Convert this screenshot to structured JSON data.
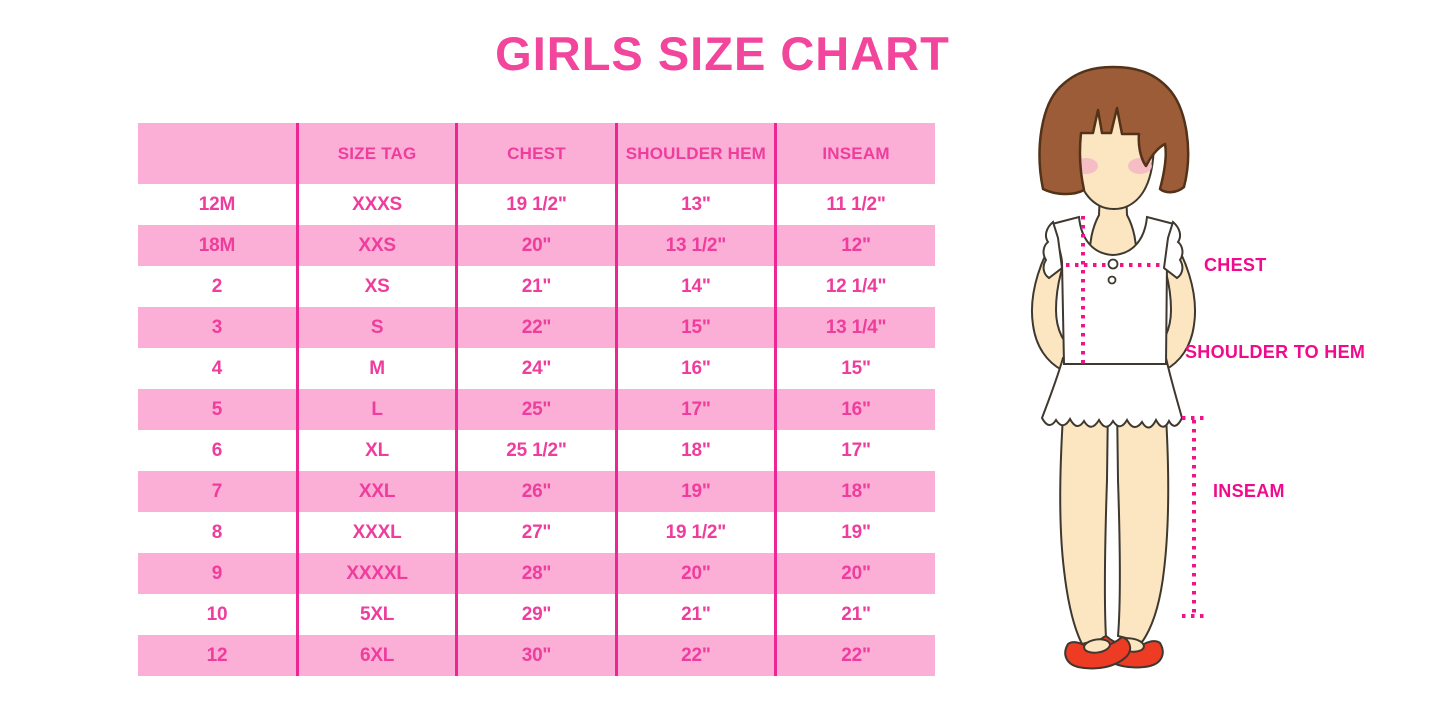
{
  "title": "GIRLS SIZE CHART",
  "chart_data": {
    "type": "table",
    "title": "GIRLS SIZE CHART",
    "columns": [
      "",
      "SIZE TAG",
      "CHEST",
      "SHOULDER HEM",
      "INSEAM"
    ],
    "rows": [
      [
        "12M",
        "XXXS",
        "19 1/2\"",
        "13\"",
        "11 1/2\""
      ],
      [
        "18M",
        "XXS",
        "20\"",
        "13 1/2\"",
        "12\""
      ],
      [
        "2",
        "XS",
        "21\"",
        "14\"",
        "12 1/4\""
      ],
      [
        "3",
        "S",
        "22\"",
        "15\"",
        "13 1/4\""
      ],
      [
        "4",
        "M",
        "24\"",
        "16\"",
        "15\""
      ],
      [
        "5",
        "L",
        "25\"",
        "17\"",
        "16\""
      ],
      [
        "6",
        "XL",
        "25 1/2\"",
        "18\"",
        "17\""
      ],
      [
        "7",
        "XXL",
        "26\"",
        "19\"",
        "18\""
      ],
      [
        "8",
        "XXXL",
        "27\"",
        "19 1/2\"",
        "19\""
      ],
      [
        "9",
        "XXXXL",
        "28\"",
        "20\"",
        "20\""
      ],
      [
        "10",
        "5XL",
        "29\"",
        "21\"",
        "21\""
      ],
      [
        "12",
        "6XL",
        "30\"",
        "22\"",
        "22\""
      ]
    ],
    "layout": {
      "row_striping": "header and even data rows pink, odd data rows white",
      "column_dividers": "magenta vertical lines"
    }
  },
  "diagram": {
    "chest_label": "CHEST",
    "shoulder_to_hem_label": "SHOULDER TO HEM",
    "inseam_label": "INSEAM"
  },
  "colors": {
    "title_pink": "#f2459c",
    "row_pink": "#fbaed6",
    "table_text_pink": "#ee3d9c",
    "divider_magenta": "#ee2693",
    "label_magenta": "#f00b8c",
    "dotted_line_magenta": "#f0138c",
    "hair_brown": "#9c5c38",
    "hair_outline": "#523218",
    "skin": "#fce6c2",
    "outline": "#3e382f",
    "shoe_red": "#ee3b24",
    "blush": "#f5b6c4"
  }
}
